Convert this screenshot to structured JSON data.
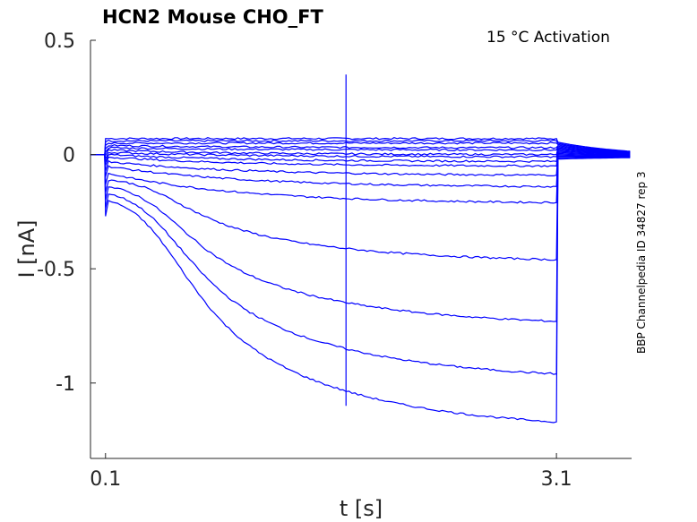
{
  "chart_data": {
    "type": "line",
    "title": "HCN2  Mouse  CHO_FT",
    "annotation": "15 °C  Activation",
    "side_label": "BBP Channelpedia ID 34827 rep 3",
    "xlabel": "t [s]",
    "ylabel": "I [nA]",
    "xlim": [
      0.0,
      3.6
    ],
    "ylim": [
      -1.33,
      0.5
    ],
    "x_ticks": [
      0.1,
      3.1
    ],
    "x_tick_labels": [
      "0.1",
      "3.1"
    ],
    "y_ticks": [
      0.5,
      0,
      -0.5,
      -1
    ],
    "y_tick_labels": [
      "0.5",
      "0",
      "-0.5",
      "-1"
    ],
    "color": "#0000ff",
    "pulse": {
      "start": 0.1,
      "end": 3.1
    },
    "transient": {
      "t": 1.7,
      "max": 0.35,
      "min": -1.1
    },
    "series": [
      {
        "initial": 0.07,
        "final": 0.07
      },
      {
        "initial": 0.06,
        "final": 0.06
      },
      {
        "initial": 0.05,
        "final": 0.05
      },
      {
        "initial": 0.04,
        "final": 0.03
      },
      {
        "initial": 0.03,
        "final": 0.02
      },
      {
        "initial": 0.02,
        "final": 0.0
      },
      {
        "initial": 0.01,
        "final": -0.01
      },
      {
        "initial": 0.0,
        "final": -0.03
      },
      {
        "initial": -0.01,
        "final": -0.05
      },
      {
        "initial": -0.03,
        "final": -0.09
      },
      {
        "initial": -0.05,
        "final": -0.14
      },
      {
        "initial": -0.08,
        "final": -0.21
      },
      {
        "initial": -0.11,
        "final": -0.46
      },
      {
        "initial": -0.14,
        "final": -0.73
      },
      {
        "initial": -0.17,
        "final": -0.96
      },
      {
        "initial": -0.2,
        "final": -1.17
      }
    ]
  }
}
